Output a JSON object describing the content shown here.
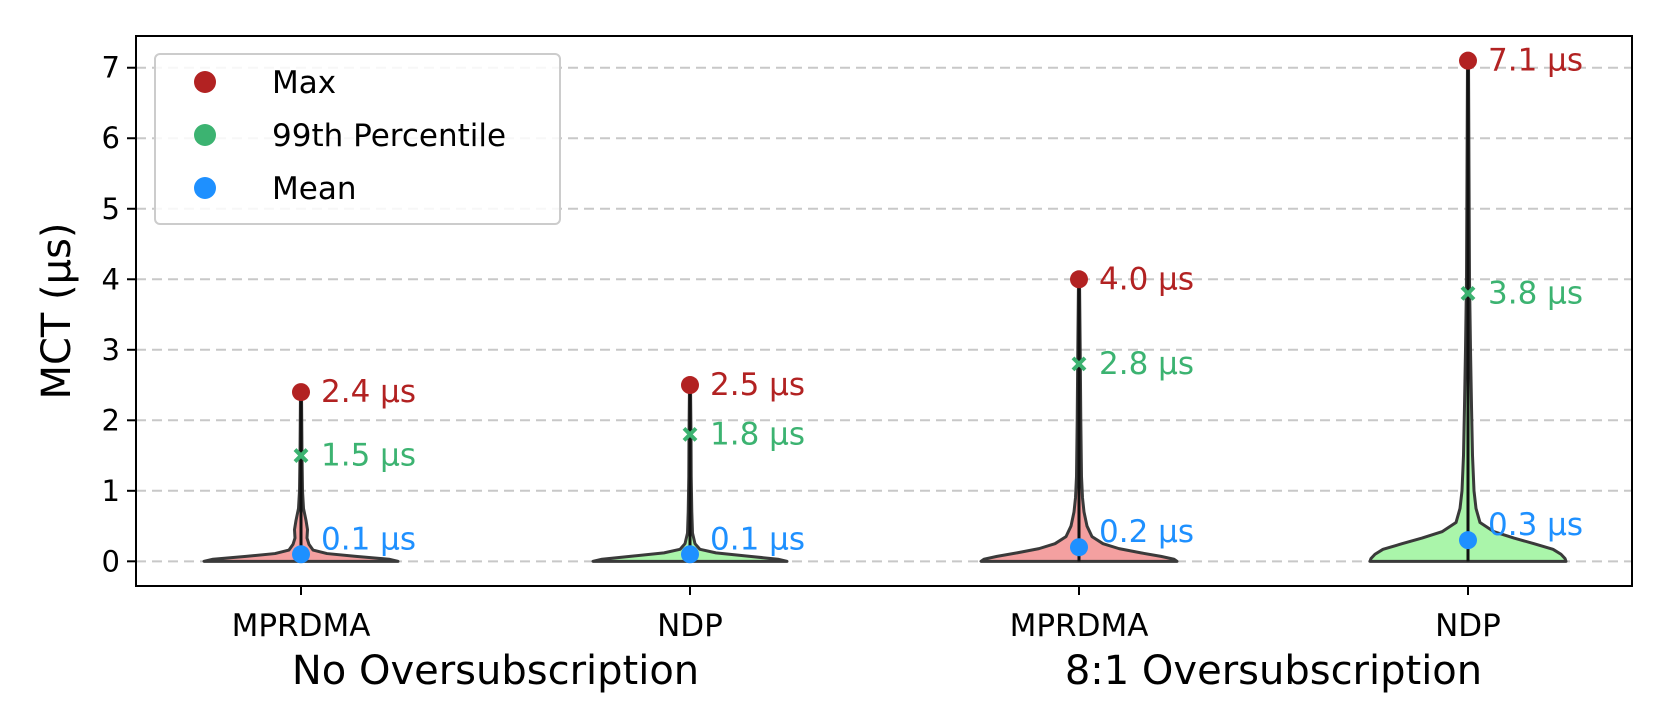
{
  "chart_data": {
    "type": "violin",
    "ylabel": "MCT (µs)",
    "ylim": [
      -0.35,
      7.45
    ],
    "yticks": [
      "0",
      "1",
      "2",
      "3",
      "4",
      "5",
      "6",
      "7"
    ],
    "grid": "horizontal dashed",
    "legend_position": "top-left",
    "legend": [
      {
        "label": "Max",
        "color": "#b22222"
      },
      {
        "label": "99th Percentile",
        "color": "#3cb371"
      },
      {
        "label": "Mean",
        "color": "#1e90ff"
      }
    ],
    "groups": [
      {
        "label": "No Oversubscription",
        "categories": [
          "MPRDMA",
          "NDP"
        ]
      },
      {
        "label": "8:1 Oversubscription",
        "categories": [
          "MPRDMA",
          "NDP"
        ]
      }
    ],
    "violins": [
      {
        "category": "MPRDMA",
        "group": "No Oversubscription",
        "fill": "#f4a0a0",
        "max": 2.4,
        "p99": 1.5,
        "mean": 0.1,
        "max_label": "2.4 µs",
        "p99_label": "1.5 µs",
        "mean_label": "0.1 µs"
      },
      {
        "category": "NDP",
        "group": "No Oversubscription",
        "fill": "#aaf5aa",
        "max": 2.5,
        "p99": 1.8,
        "mean": 0.1,
        "max_label": "2.5 µs",
        "p99_label": "1.8 µs",
        "mean_label": "0.1 µs"
      },
      {
        "category": "MPRDMA",
        "group": "8:1 Oversubscription",
        "fill": "#f4a0a0",
        "max": 4.0,
        "p99": 2.8,
        "mean": 0.2,
        "max_label": "4.0 µs",
        "p99_label": "2.8 µs",
        "mean_label": "0.2 µs"
      },
      {
        "category": "NDP",
        "group": "8:1 Oversubscription",
        "fill": "#aaf5aa",
        "max": 7.1,
        "p99": 3.8,
        "mean": 0.3,
        "max_label": "7.1 µs",
        "p99_label": "3.8 µs",
        "mean_label": "0.3 µs"
      }
    ]
  }
}
